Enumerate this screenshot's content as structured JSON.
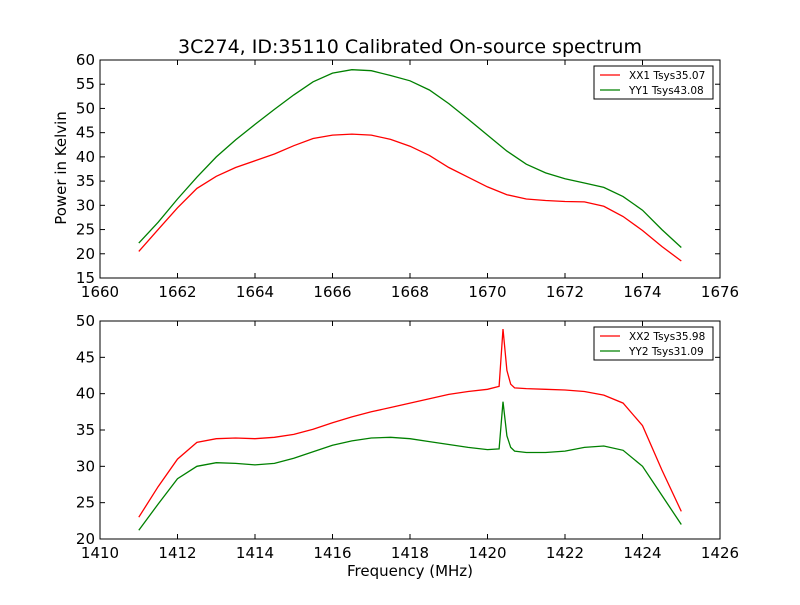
{
  "figure": {
    "title": "3C274, ID:35110 Calibrated On-source spectrum"
  },
  "colors": {
    "red": "#ff0000",
    "green": "#008000"
  },
  "chart_data": [
    {
      "type": "line",
      "title": "3C274, ID:35110 Calibrated On-source spectrum",
      "xlabel": "",
      "ylabel": "Power in Kelvin",
      "xlim": [
        1660,
        1676
      ],
      "ylim": [
        15,
        60
      ],
      "xticks": [
        1660,
        1662,
        1664,
        1666,
        1668,
        1670,
        1672,
        1674,
        1676
      ],
      "yticks": [
        15,
        20,
        25,
        30,
        35,
        40,
        45,
        50,
        55,
        60
      ],
      "legend_position": "top-right",
      "grid": false,
      "series": [
        {
          "name": "XX1 Tsys35.07",
          "color": "#ff0000",
          "x": [
            1661.0,
            1661.5,
            1662.0,
            1662.5,
            1663.0,
            1663.5,
            1664.0,
            1664.5,
            1665.0,
            1665.5,
            1666.0,
            1666.5,
            1667.0,
            1667.5,
            1668.0,
            1668.5,
            1669.0,
            1669.5,
            1670.0,
            1670.5,
            1671.0,
            1671.5,
            1672.0,
            1672.5,
            1673.0,
            1673.5,
            1674.0,
            1674.5,
            1675.0
          ],
          "values": [
            20.5,
            25.0,
            29.5,
            33.5,
            36.0,
            37.8,
            39.2,
            40.6,
            42.3,
            43.8,
            44.5,
            44.7,
            44.5,
            43.6,
            42.2,
            40.3,
            37.8,
            35.8,
            33.8,
            32.2,
            31.3,
            31.0,
            30.8,
            30.7,
            29.8,
            27.7,
            24.8,
            21.5,
            18.5
          ]
        },
        {
          "name": "YY1 Tsys43.08",
          "color": "#008000",
          "x": [
            1661.0,
            1661.5,
            1662.0,
            1662.5,
            1663.0,
            1663.5,
            1664.0,
            1664.5,
            1665.0,
            1665.5,
            1666.0,
            1666.5,
            1667.0,
            1667.5,
            1668.0,
            1668.5,
            1669.0,
            1669.5,
            1670.0,
            1670.5,
            1671.0,
            1671.5,
            1672.0,
            1672.5,
            1673.0,
            1673.5,
            1674.0,
            1674.5,
            1675.0
          ],
          "values": [
            22.2,
            26.5,
            31.3,
            35.8,
            40.0,
            43.5,
            46.7,
            49.8,
            52.8,
            55.5,
            57.3,
            58.0,
            57.8,
            56.8,
            55.7,
            53.8,
            51.0,
            47.8,
            44.5,
            41.2,
            38.5,
            36.7,
            35.5,
            34.6,
            33.7,
            31.8,
            29.0,
            25.0,
            21.3
          ]
        }
      ]
    },
    {
      "type": "line",
      "title": "",
      "xlabel": "Frequency (MHz)",
      "ylabel": "",
      "xlim": [
        1410,
        1426
      ],
      "ylim": [
        20,
        50
      ],
      "xticks": [
        1410,
        1412,
        1414,
        1416,
        1418,
        1420,
        1422,
        1424,
        1426
      ],
      "yticks": [
        20,
        25,
        30,
        35,
        40,
        45,
        50
      ],
      "legend_position": "top-right",
      "grid": false,
      "series": [
        {
          "name": "XX2 Tsys35.98",
          "color": "#ff0000",
          "x": [
            1411.0,
            1411.5,
            1412.0,
            1412.5,
            1413.0,
            1413.5,
            1414.0,
            1414.5,
            1415.0,
            1415.5,
            1416.0,
            1416.5,
            1417.0,
            1417.5,
            1418.0,
            1418.5,
            1419.0,
            1419.5,
            1420.0,
            1420.3,
            1420.4,
            1420.5,
            1420.6,
            1420.7,
            1421.0,
            1421.5,
            1422.0,
            1422.5,
            1423.0,
            1423.5,
            1424.0,
            1424.5,
            1425.0
          ],
          "values": [
            23.0,
            27.2,
            31.0,
            33.3,
            33.8,
            33.9,
            33.8,
            34.0,
            34.4,
            35.1,
            36.0,
            36.8,
            37.5,
            38.1,
            38.7,
            39.3,
            39.9,
            40.3,
            40.6,
            41.0,
            48.9,
            43.2,
            41.3,
            40.8,
            40.7,
            40.6,
            40.5,
            40.3,
            39.8,
            38.7,
            35.6,
            29.5,
            23.8
          ]
        },
        {
          "name": "YY2 Tsys31.09",
          "color": "#008000",
          "x": [
            1411.0,
            1411.5,
            1412.0,
            1412.5,
            1413.0,
            1413.5,
            1414.0,
            1414.5,
            1415.0,
            1415.5,
            1416.0,
            1416.5,
            1417.0,
            1417.5,
            1418.0,
            1418.5,
            1419.0,
            1419.5,
            1420.0,
            1420.3,
            1420.4,
            1420.5,
            1420.6,
            1420.7,
            1421.0,
            1421.5,
            1422.0,
            1422.5,
            1423.0,
            1423.5,
            1424.0,
            1424.5,
            1425.0
          ],
          "values": [
            21.2,
            24.8,
            28.3,
            30.0,
            30.5,
            30.4,
            30.2,
            30.4,
            31.1,
            32.0,
            32.9,
            33.5,
            33.9,
            34.0,
            33.8,
            33.4,
            33.0,
            32.6,
            32.3,
            32.4,
            38.9,
            34.2,
            32.6,
            32.1,
            31.9,
            31.9,
            32.1,
            32.6,
            32.8,
            32.2,
            30.0,
            26.0,
            22.0
          ]
        }
      ]
    }
  ]
}
